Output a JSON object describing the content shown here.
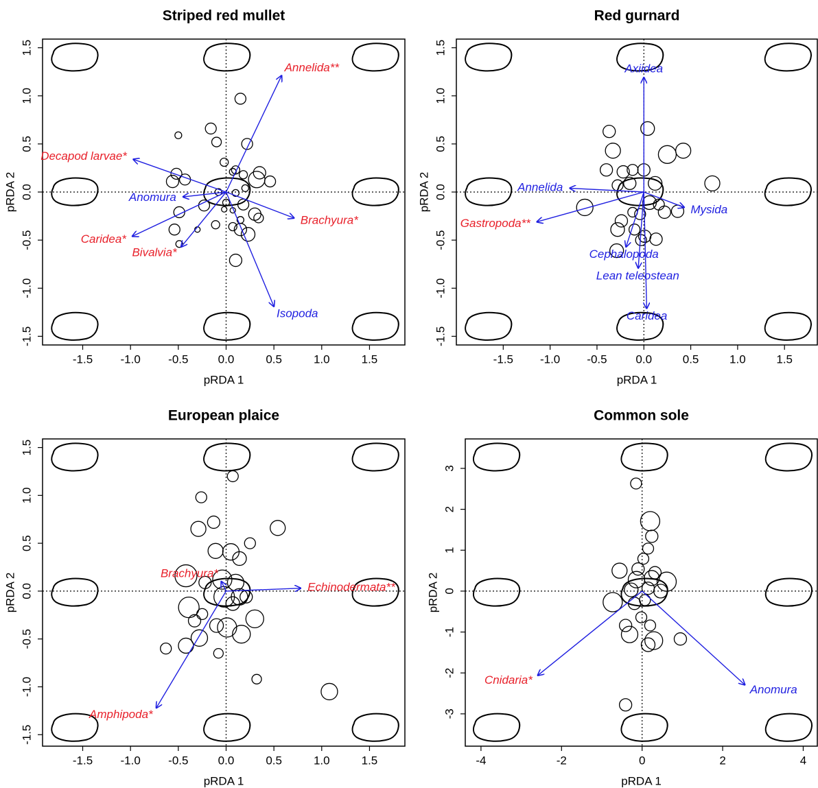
{
  "chart_data": [
    {
      "type": "biplot",
      "title": "Striped red mullet",
      "xlabel": "pRDA 1",
      "ylabel": "pRDA 2",
      "xlim": [
        -1.92,
        1.87
      ],
      "ylim": [
        -1.59,
        1.59
      ],
      "xticks": [
        -1.5,
        {
          "value": -1.0,
          "label": "-1.0"
        },
        -0.5,
        {
          "value": 0.0,
          "label": "0.0"
        },
        0.5,
        {
          "value": 1.0,
          "label": "1.0"
        },
        1.5
      ],
      "yticks": [
        -1.5,
        {
          "value": -1.0,
          "label": "-1.0"
        },
        -0.5,
        {
          "value": 0.0,
          "label": "0.0"
        },
        0.5,
        {
          "value": 1.0,
          "label": "1.0"
        },
        1.5
      ],
      "arrow_color": "#1f1fe0",
      "points": {
        "x": [
          0.15,
          -0.16,
          -0.1,
          -0.5,
          0.22,
          -0.02,
          0.07,
          0.1,
          0.18,
          0.35,
          0.46,
          0.32,
          -0.52,
          -0.56,
          -0.43,
          -0.49,
          -0.54,
          -0.49,
          -0.3,
          -0.11,
          -0.23,
          -0.08,
          0.1,
          0.0,
          0.18,
          0.15,
          0.07,
          0.15,
          0.23,
          0.3,
          0.34,
          0.1,
          0.2,
          0.07,
          -0.02
        ],
        "y": [
          0.97,
          0.66,
          0.52,
          0.59,
          0.5,
          0.31,
          0.21,
          0.23,
          0.18,
          0.2,
          0.11,
          0.13,
          0.19,
          0.11,
          0.13,
          -0.21,
          -0.39,
          -0.54,
          -0.39,
          -0.34,
          -0.14,
          0.0,
          -0.01,
          -0.11,
          -0.13,
          -0.29,
          -0.36,
          -0.39,
          -0.44,
          -0.23,
          -0.27,
          -0.71,
          0.04,
          -0.19,
          -0.18
        ],
        "sizes": [
          8,
          8,
          7,
          5,
          8,
          6,
          5,
          6,
          6,
          9,
          8,
          12,
          8,
          9,
          8,
          8,
          8,
          5,
          4,
          6,
          8,
          5,
          5,
          5,
          8,
          5,
          6,
          9,
          10,
          9,
          7,
          9,
          5,
          4,
          4
        ]
      },
      "arrows": [
        {
          "label": "Annelida**",
          "color": "#e8202a",
          "x": 0.58,
          "y": 1.21
        },
        {
          "label": "Decapod larvae*",
          "color": "#e8202a",
          "x": -0.97,
          "y": 0.34
        },
        {
          "label": "Anomura",
          "color": "#1f1fe0",
          "x": -0.45,
          "y": -0.05
        },
        {
          "label": "Caridea*",
          "color": "#e8202a",
          "x": -0.98,
          "y": -0.46
        },
        {
          "label": "Bivalvia*",
          "color": "#e8202a",
          "x": -0.47,
          "y": -0.57
        },
        {
          "label": "Brachyura*",
          "color": "#e8202a",
          "x": 0.71,
          "y": -0.27
        },
        {
          "label": "Isopoda",
          "color": "#1f1fe0",
          "x": 0.5,
          "y": -1.19
        }
      ]
    },
    {
      "type": "biplot",
      "title": "Red gurnard",
      "xlabel": "pRDA 1",
      "ylabel": "pRDA 2",
      "xlim": [
        -2.0,
        1.85
      ],
      "ylim": [
        -1.59,
        1.59
      ],
      "xticks": [
        -1.5,
        {
          "value": -1.0,
          "label": "-1.0"
        },
        -0.5,
        {
          "value": 0.0,
          "label": "0.0"
        },
        0.5,
        {
          "value": 1.0,
          "label": "1.0"
        },
        1.5
      ],
      "yticks": [
        -1.5,
        {
          "value": -1.0,
          "label": "-1.0"
        },
        -0.5,
        {
          "value": 0.0,
          "label": "0.0"
        },
        0.5,
        {
          "value": 1.0,
          "label": "1.0"
        },
        1.5
      ],
      "arrow_color": "#1f1fe0",
      "points": {
        "x": [
          -0.37,
          0.04,
          -0.33,
          0.42,
          0.25,
          -0.4,
          -0.22,
          -0.12,
          0.0,
          0.73,
          0.12,
          -0.28,
          -0.15,
          -0.63,
          0.06,
          0.22,
          0.36,
          0.16,
          -0.24,
          -0.28,
          -0.1,
          0.01,
          -0.03,
          0.13,
          -0.29,
          -0.12,
          -0.04
        ],
        "y": [
          0.63,
          0.66,
          0.43,
          0.43,
          0.39,
          0.23,
          0.21,
          0.23,
          0.23,
          0.09,
          0.09,
          0.07,
          0.09,
          -0.16,
          -0.11,
          -0.21,
          -0.2,
          -0.13,
          -0.3,
          -0.39,
          -0.39,
          -0.46,
          -0.5,
          -0.49,
          -0.61,
          -0.21,
          -0.23
        ],
        "sizes": [
          9,
          10,
          11,
          11,
          13,
          9,
          9,
          8,
          9,
          11,
          10,
          8,
          9,
          12,
          10,
          9,
          9,
          8,
          9,
          10,
          8,
          9,
          8,
          9,
          10,
          7,
          8
        ]
      },
      "arrows": [
        {
          "label": "Axiidea",
          "color": "#1f1fe0",
          "x": 0.0,
          "y": 1.19
        },
        {
          "label": "Annelida",
          "color": "#1f1fe0",
          "x": -0.79,
          "y": 0.04
        },
        {
          "label": "Gastropoda**",
          "color": "#e8202a",
          "x": -1.14,
          "y": -0.31
        },
        {
          "label": "Mysida",
          "color": "#1f1fe0",
          "x": 0.43,
          "y": -0.16
        },
        {
          "label": "Cephalopoda",
          "color": "#1f1fe0",
          "x": -0.19,
          "y": -0.57
        },
        {
          "label": "Lean teleostean",
          "color": "#1f1fe0",
          "x": -0.06,
          "y": -0.79
        },
        {
          "label": "Caridea",
          "color": "#1f1fe0",
          "x": 0.03,
          "y": -1.21
        }
      ]
    },
    {
      "type": "biplot",
      "title": "European plaice",
      "xlabel": "pRDA 1",
      "ylabel": "pRDA 2",
      "xlim": [
        -1.92,
        1.87
      ],
      "ylim": [
        -1.62,
        1.59
      ],
      "xticks": [
        -1.5,
        {
          "value": -1.0,
          "label": "-1.0"
        },
        -0.5,
        {
          "value": 0.0,
          "label": "0.0"
        },
        0.5,
        {
          "value": 1.0,
          "label": "1.0"
        },
        1.5
      ],
      "yticks": [
        -1.5,
        {
          "value": -1.0,
          "label": "-1.0"
        },
        -0.5,
        {
          "value": 0.0,
          "label": "0.0"
        },
        0.5,
        {
          "value": 1.0,
          "label": "1.0"
        },
        1.5
      ],
      "arrow_color": "#1f1fe0",
      "points": {
        "x": [
          0.07,
          -0.26,
          -0.13,
          -0.29,
          0.54,
          0.25,
          -0.11,
          0.05,
          0.14,
          -0.42,
          -0.22,
          -0.04,
          0.1,
          0.14,
          0.07,
          -0.02,
          -0.39,
          -0.25,
          -0.33,
          -0.28,
          -0.42,
          -0.63,
          -0.1,
          0.01,
          0.16,
          0.3,
          -0.08,
          0.32,
          1.08,
          0.21
        ],
        "y": [
          1.2,
          0.98,
          0.72,
          0.65,
          0.66,
          0.5,
          0.42,
          0.41,
          0.34,
          0.16,
          0.09,
          0.12,
          0.09,
          -0.06,
          -0.13,
          -0.06,
          -0.17,
          -0.24,
          -0.31,
          -0.49,
          -0.57,
          -0.6,
          -0.36,
          -0.38,
          -0.45,
          -0.29,
          -0.65,
          -0.92,
          -1.05,
          -0.06
        ],
        "sizes": [
          8,
          8,
          9,
          11,
          11,
          8,
          11,
          12,
          10,
          16,
          9,
          14,
          12,
          12,
          10,
          15,
          15,
          8,
          9,
          12,
          11,
          8,
          10,
          14,
          13,
          13,
          7,
          7,
          12,
          9
        ]
      },
      "arrows": [
        {
          "label": "Brachyura*",
          "color": "#e8202a",
          "x": -0.05,
          "y": 0.1
        },
        {
          "label": "Echinodermata**",
          "color": "#e8202a",
          "x": 0.78,
          "y": 0.03
        },
        {
          "label": "Amphipoda*",
          "color": "#e8202a",
          "x": -0.73,
          "y": -1.22
        }
      ]
    },
    {
      "type": "biplot",
      "title": "Common sole",
      "xlabel": "pRDA 1",
      "ylabel": "pRDA 2",
      "xlim": [
        -4.39,
        4.35
      ],
      "ylim": [
        -3.79,
        3.72
      ],
      "xticks": [
        -4,
        -2,
        0,
        2,
        4
      ],
      "yticks": [
        -3,
        -2,
        -1,
        0,
        1,
        2,
        3
      ],
      "arrow_color": "#1f1fe0",
      "points": {
        "x": [
          -0.15,
          0.2,
          0.24,
          0.15,
          0.03,
          -0.56,
          -0.1,
          0.32,
          -0.14,
          0.24,
          0.61,
          -0.27,
          0.15,
          0.46,
          -0.73,
          -0.19,
          0.07,
          -0.41,
          -0.31,
          0.2,
          0.29,
          0.15,
          0.95,
          -0.41,
          -0.02
        ],
        "y": [
          2.63,
          1.71,
          1.34,
          1.04,
          0.79,
          0.5,
          0.54,
          0.45,
          0.28,
          0.32,
          0.23,
          0.03,
          0.07,
          0.0,
          -0.27,
          -0.3,
          -0.22,
          -0.84,
          -1.06,
          -0.84,
          -1.21,
          -1.31,
          -1.17,
          -2.78,
          -0.64
        ],
        "sizes": [
          8,
          14,
          9,
          8,
          8,
          11,
          9,
          9,
          12,
          11,
          14,
          10,
          9,
          10,
          14,
          9,
          8,
          9,
          12,
          8,
          13,
          10,
          9,
          9,
          8
        ]
      },
      "arrows": [
        {
          "label": "Cnidaria*",
          "color": "#e8202a",
          "x": -2.59,
          "y": -2.06
        },
        {
          "label": "Anomura",
          "color": "#1f1fe0",
          "x": 2.55,
          "y": -2.29
        }
      ]
    }
  ]
}
